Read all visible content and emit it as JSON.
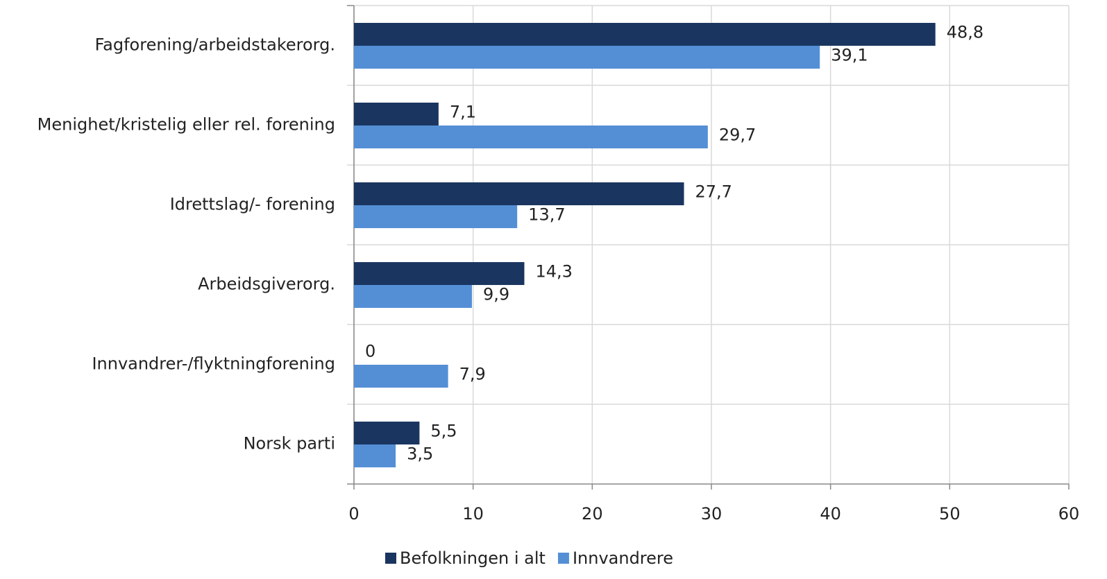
{
  "chart_data": {
    "type": "hbar",
    "categories": [
      "Fagforening/arbeidstakerorg.",
      "Menighet/kristelig eller rel. forening",
      "Idrettslag/- forening",
      "Arbeidsgiverorg.",
      "Innvandrer-/flyktningforening",
      "Norsk parti"
    ],
    "series": [
      {
        "name": "Befolkningen i alt",
        "color": "#1a3660",
        "values": [
          48.8,
          7.1,
          27.7,
          14.3,
          0,
          5.5
        ],
        "value_labels": [
          "48,8",
          "7,1",
          "27,7",
          "14,3",
          "0",
          "5,5"
        ]
      },
      {
        "name": "Innvandrere",
        "color": "#548fd6",
        "values": [
          39.1,
          29.7,
          13.7,
          9.9,
          7.9,
          3.5
        ],
        "value_labels": [
          "39,1",
          "29,7",
          "13,7",
          "9,9",
          "7,9",
          "3,5"
        ]
      }
    ],
    "xlim": [
      0,
      60
    ],
    "xticks": [
      0,
      10,
      20,
      30,
      40,
      50,
      60
    ],
    "grid": true,
    "legend": "bottom"
  }
}
